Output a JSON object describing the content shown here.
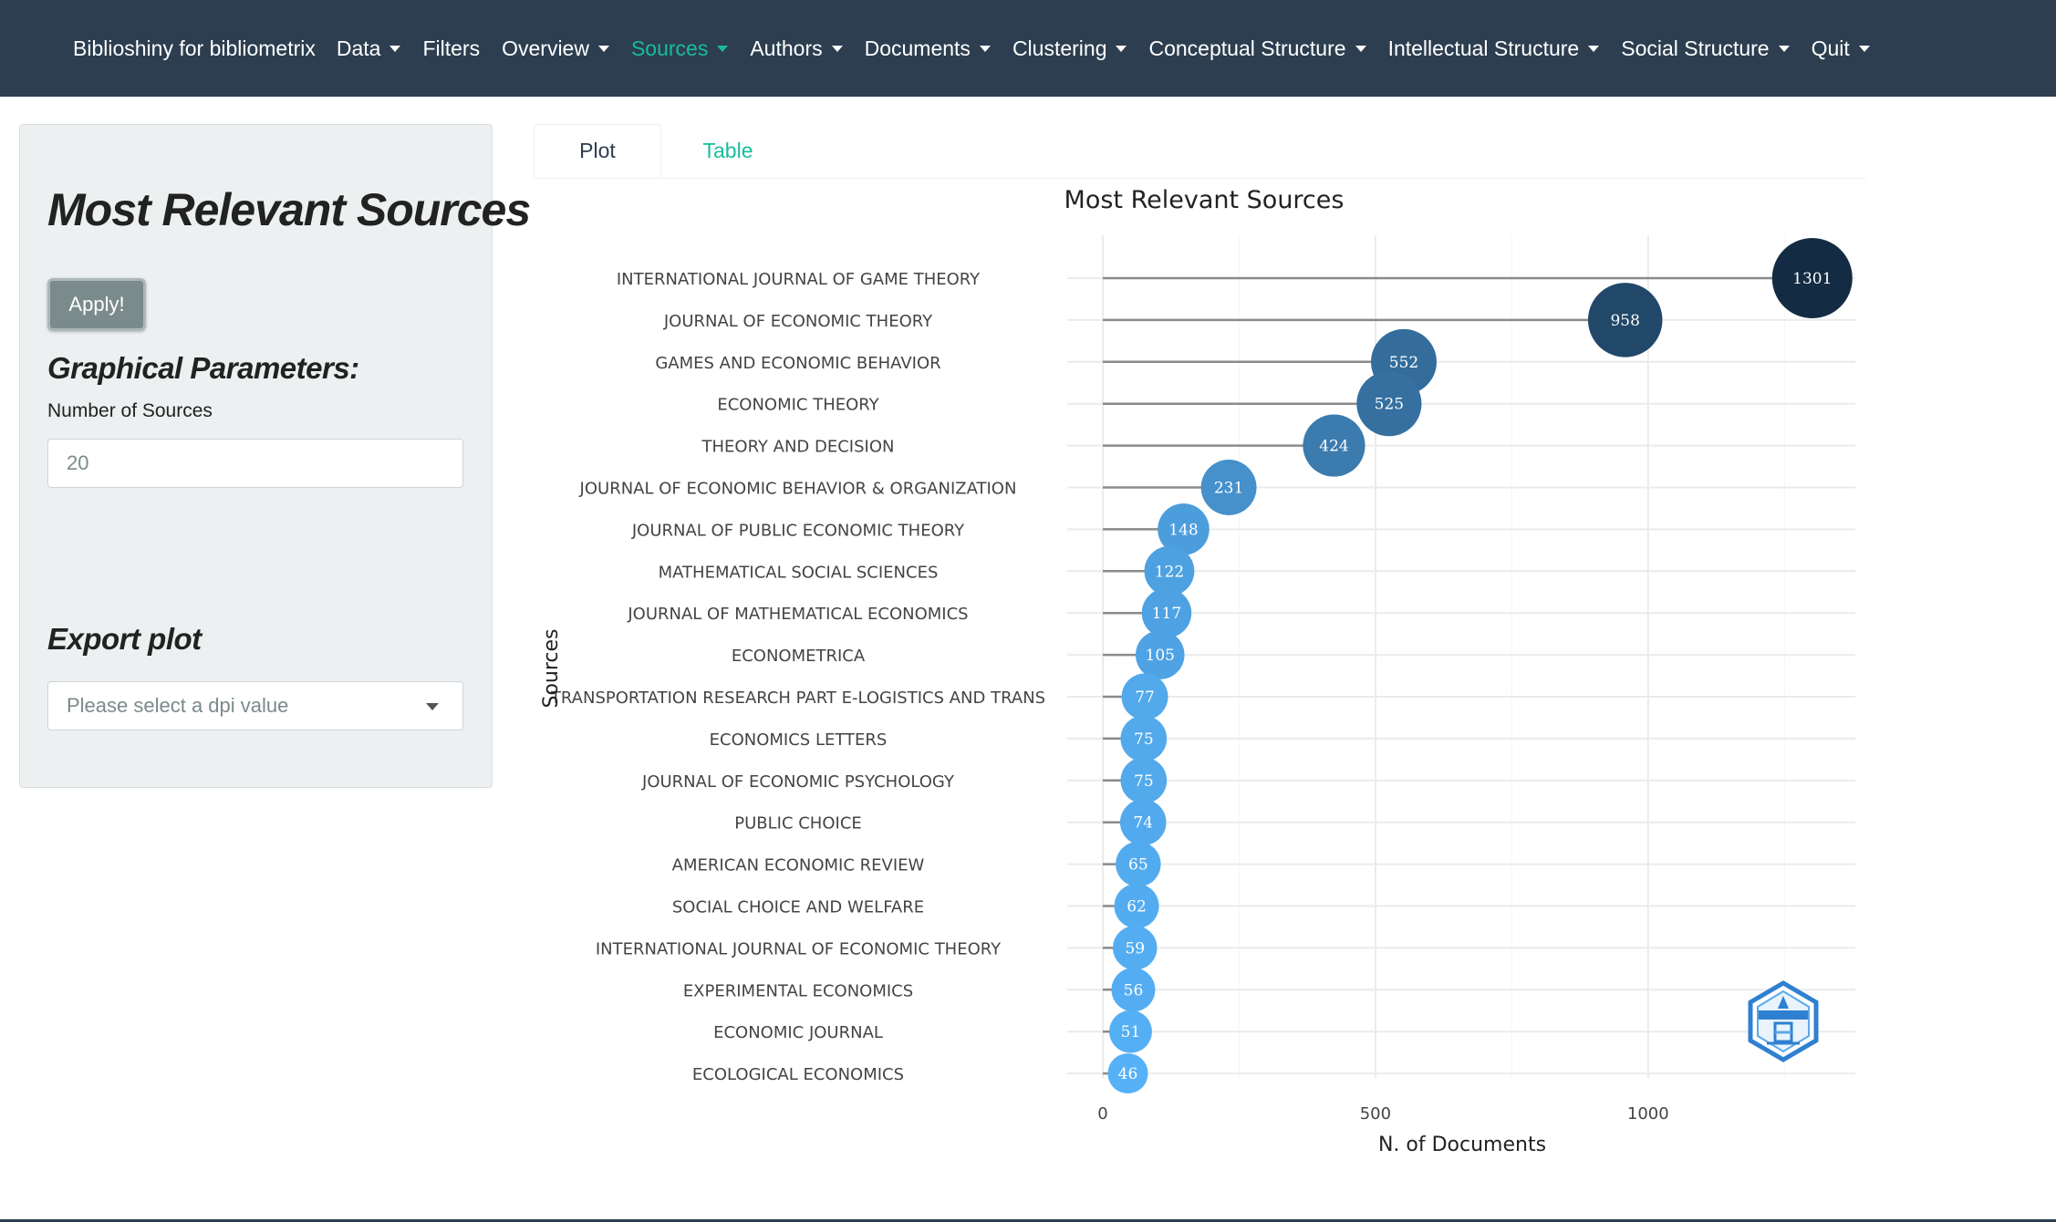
{
  "navbar": {
    "brand": "Biblioshiny for bibliometrix",
    "items": [
      {
        "label": "Data",
        "dropdown": true,
        "active": false
      },
      {
        "label": "Filters",
        "dropdown": false,
        "active": false
      },
      {
        "label": "Overview",
        "dropdown": true,
        "active": false
      },
      {
        "label": "Sources",
        "dropdown": true,
        "active": true
      },
      {
        "label": "Authors",
        "dropdown": true,
        "active": false
      },
      {
        "label": "Documents",
        "dropdown": true,
        "active": false
      },
      {
        "label": "Clustering",
        "dropdown": true,
        "active": false
      },
      {
        "label": "Conceptual Structure",
        "dropdown": true,
        "active": false
      },
      {
        "label": "Intellectual Structure",
        "dropdown": true,
        "active": false
      },
      {
        "label": "Social Structure",
        "dropdown": true,
        "active": false
      },
      {
        "label": "Quit",
        "dropdown": true,
        "active": false
      }
    ]
  },
  "sidebar": {
    "title": "Most Relevant Sources",
    "apply_label": "Apply!",
    "graphical_title": "Graphical Parameters:",
    "num_sources_label": "Number of Sources",
    "num_sources_value": "20",
    "export_title": "Export plot",
    "dpi_placeholder": "Please select a dpi value"
  },
  "tabs": {
    "plot": "Plot",
    "table": "Table"
  },
  "colors": {
    "nav_bg": "#2c3e50",
    "accent": "#18bc9c",
    "dot_low": "#56b1f7",
    "dot_high": "#132b43"
  },
  "logo_icon": "bibliometrix-logo-icon",
  "chart_data": {
    "type": "scatter",
    "title": "Most Relevant Sources",
    "xlabel": "N. of Documents",
    "ylabel": "Sources",
    "xlim": [
      0,
      1380
    ],
    "x_ticks": [
      0,
      500,
      1000
    ],
    "grid": true,
    "categories": [
      "INTERNATIONAL JOURNAL OF GAME THEORY",
      "JOURNAL OF ECONOMIC THEORY",
      "GAMES AND ECONOMIC BEHAVIOR",
      "ECONOMIC THEORY",
      "THEORY AND DECISION",
      "JOURNAL OF ECONOMIC BEHAVIOR & ORGANIZATION",
      "JOURNAL OF PUBLIC ECONOMIC THEORY",
      "MATHEMATICAL SOCIAL SCIENCES",
      "JOURNAL OF MATHEMATICAL ECONOMICS",
      "ECONOMETRICA",
      "TRANSPORTATION RESEARCH PART E-LOGISTICS AND TRANS",
      "ECONOMICS LETTERS",
      "JOURNAL OF ECONOMIC PSYCHOLOGY",
      "PUBLIC CHOICE",
      "AMERICAN ECONOMIC REVIEW",
      "SOCIAL CHOICE AND WELFARE",
      "INTERNATIONAL JOURNAL OF ECONOMIC THEORY",
      "EXPERIMENTAL ECONOMICS",
      "ECONOMIC JOURNAL",
      "ECOLOGICAL ECONOMICS"
    ],
    "values": [
      1301,
      958,
      552,
      525,
      424,
      231,
      148,
      122,
      117,
      105,
      77,
      75,
      75,
      74,
      65,
      62,
      59,
      56,
      51,
      46
    ]
  }
}
